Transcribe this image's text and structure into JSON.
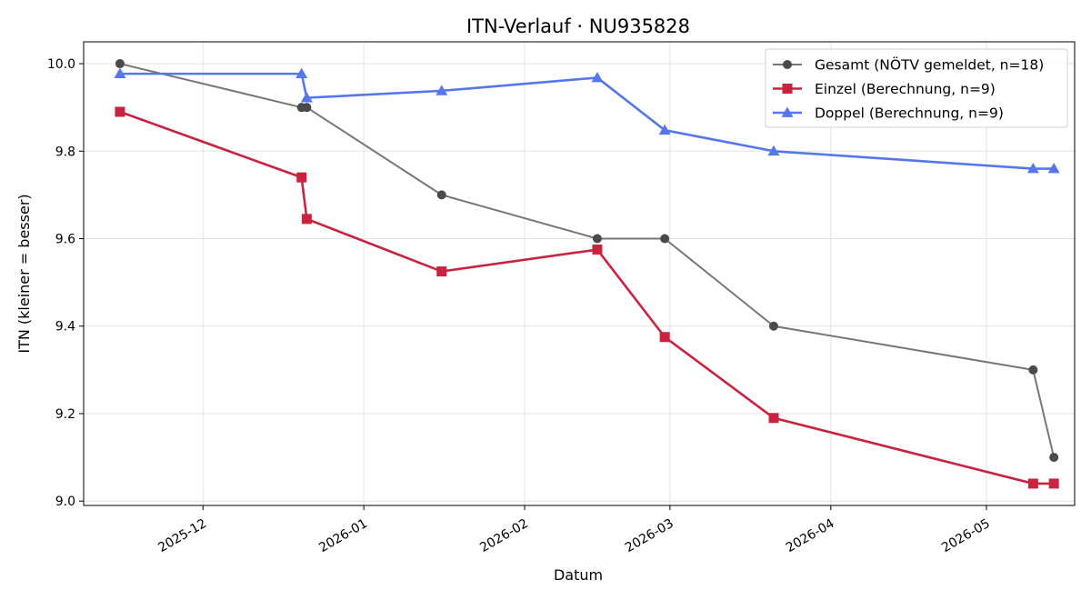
{
  "chart_data": {
    "type": "line",
    "title": "ITN-Verlauf · NU935828",
    "xlabel": "Datum",
    "ylabel": "ITN  (kleiner = besser)",
    "x_type": "date",
    "xlim": [
      "2025-11-08",
      "2026-05-18"
    ],
    "ylim": [
      8.99,
      10.05
    ],
    "x_ticks": [
      {
        "date": "2025-12-01",
        "label": "2025-12"
      },
      {
        "date": "2026-01-01",
        "label": "2026-01"
      },
      {
        "date": "2026-02-01",
        "label": "2026-02"
      },
      {
        "date": "2026-03-01",
        "label": "2026-03"
      },
      {
        "date": "2026-04-01",
        "label": "2026-04"
      },
      {
        "date": "2026-05-01",
        "label": "2026-05"
      }
    ],
    "y_ticks": [
      {
        "value": 9.0,
        "label": "9.0"
      },
      {
        "value": 9.2,
        "label": "9.2"
      },
      {
        "value": 9.4,
        "label": "9.4"
      },
      {
        "value": 9.6,
        "label": "9.6"
      },
      {
        "value": 9.8,
        "label": "9.8"
      },
      {
        "value": 10.0,
        "label": "10.0"
      }
    ],
    "grid": true,
    "legend_position": "top-right",
    "series": [
      {
        "name": "Gesamt (NÖTV gemeldet, n=18)",
        "color": "#777777",
        "marker_color": "#4a4a4a",
        "marker": "circle",
        "line_width": 2,
        "x": [
          "2025-11-15",
          "2025-12-20",
          "2025-12-21",
          "2026-01-16",
          "2026-02-15",
          "2026-02-28",
          "2026-03-21",
          "2026-05-10",
          "2026-05-14"
        ],
        "y": [
          10.0,
          9.9,
          9.9,
          9.7,
          9.6,
          9.6,
          9.4,
          9.3,
          9.1
        ]
      },
      {
        "name": "Einzel (Berechnung, n=9)",
        "color": "#c8233f",
        "marker_color": "#c8233f",
        "marker": "square",
        "line_width": 2.6,
        "x": [
          "2025-11-15",
          "2025-12-20",
          "2025-12-21",
          "2026-01-16",
          "2026-02-15",
          "2026-02-28",
          "2026-03-21",
          "2026-05-10",
          "2026-05-14"
        ],
        "y": [
          9.89,
          9.74,
          9.645,
          9.525,
          9.575,
          9.375,
          9.19,
          9.04,
          9.04
        ]
      },
      {
        "name": "Doppel (Berechnung, n=9)",
        "color": "#5577ee",
        "marker_color": "#5577ee",
        "marker": "triangle",
        "line_width": 2.6,
        "x": [
          "2025-11-15",
          "2025-12-20",
          "2025-12-21",
          "2026-01-16",
          "2026-02-15",
          "2026-02-28",
          "2026-03-21",
          "2026-05-10",
          "2026-05-14"
        ],
        "y": [
          9.977,
          9.977,
          9.922,
          9.938,
          9.968,
          9.848,
          9.8,
          9.76,
          9.76
        ]
      }
    ]
  }
}
